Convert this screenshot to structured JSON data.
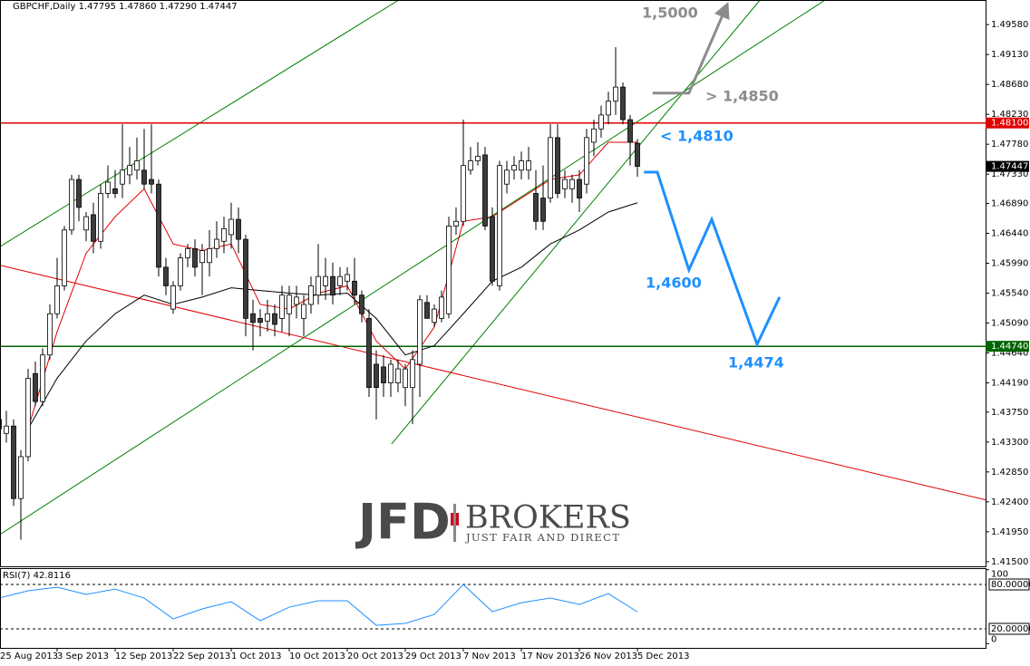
{
  "chart_data": {
    "type": "candlestick",
    "symbol": "GBPCHF,Daily",
    "last_labels": [
      "1.47795",
      "1.47860",
      "1.47290",
      "1.47447"
    ],
    "categories": [
      "25 Aug 2013",
      null,
      null,
      null,
      null,
      null,
      null,
      null,
      "3 Sep 2013",
      null,
      null,
      null,
      null,
      null,
      null,
      null,
      "12 Sep 2013",
      null,
      null,
      null,
      null,
      null,
      null,
      null,
      "22 Sep 2013",
      null,
      null,
      null,
      null,
      null,
      null,
      null,
      "1 Oct 2013",
      null,
      null,
      null,
      null,
      null,
      null,
      null,
      "10 Oct 2013",
      null,
      null,
      null,
      null,
      null,
      null,
      null,
      "20 Oct 2013",
      null,
      null,
      null,
      null,
      null,
      null,
      null,
      "29 Oct 2013",
      null,
      null,
      null,
      null,
      null,
      null,
      null,
      "7 Nov 2013",
      null,
      null,
      null,
      null,
      null,
      null,
      null,
      "17 Nov 2013",
      null,
      null,
      null,
      null,
      null,
      null,
      null,
      "26 Nov 2013",
      null,
      null,
      null,
      null,
      null,
      null,
      null,
      "5 Dec 2013"
    ],
    "open": [
      1.4364,
      1.4343,
      1.4354,
      1.4245,
      1.4308,
      1.4433,
      1.4391,
      1.4461,
      1.4523,
      1.4565,
      1.4649,
      1.4725,
      1.4649,
      1.4672,
      1.4632,
      1.4704,
      1.4711,
      1.4718,
      1.4732,
      1.4739,
      1.4739,
      1.4725,
      1.4718,
      1.4593,
      1.453,
      1.4565,
      1.4607,
      1.4621,
      1.46,
      1.46,
      1.4621,
      1.4632,
      1.4642,
      1.4665,
      1.4635,
      1.4523,
      1.4516,
      1.4512,
      1.4523,
      1.4516,
      1.4523,
      1.4537,
      1.4516,
      1.4537,
      1.4551,
      1.4565,
      1.4579,
      1.4565,
      1.4572,
      1.4572,
      1.4551,
      1.4516,
      1.4447,
      1.4443,
      1.4419,
      1.4419,
      1.4412,
      1.4412,
      1.4447,
      1.454,
      1.451,
      1.4516,
      1.4523,
      1.4655,
      1.4662,
      1.4739,
      1.4753,
      1.4762,
      1.4669,
      1.4565,
      1.4718,
      1.4739,
      1.4739,
      1.4739,
      1.4704,
      1.4697,
      1.4697,
      1.4788,
      1.4711,
      1.4711,
      1.4725,
      1.4718,
      1.4781,
      1.4801,
      1.4822,
      1.4843,
      1.4864,
      1.4815,
      1.47795
    ],
    "high": [
      1.4384,
      1.4377,
      1.4364,
      1.4318,
      1.444,
      1.4451,
      1.4471,
      1.4537,
      1.4607,
      1.4655,
      1.4732,
      1.4732,
      1.4676,
      1.469,
      1.4718,
      1.4746,
      1.4739,
      1.4808,
      1.4774,
      1.4788,
      1.4801,
      1.4808,
      1.4725,
      1.4607,
      1.4572,
      1.4614,
      1.4628,
      1.4635,
      1.4628,
      1.4649,
      1.4662,
      1.4669,
      1.469,
      1.4683,
      1.4642,
      1.4544,
      1.453,
      1.4544,
      1.4537,
      1.4565,
      1.4565,
      1.4565,
      1.4551,
      1.4579,
      1.4628,
      1.4607,
      1.46,
      1.4593,
      1.4593,
      1.4607,
      1.4558,
      1.453,
      1.4468,
      1.4461,
      1.4454,
      1.4454,
      1.4447,
      1.4468,
      1.4551,
      1.4551,
      1.4537,
      1.4558,
      1.4669,
      1.4683,
      1.4815,
      1.4774,
      1.4781,
      1.4774,
      1.4683,
      1.4753,
      1.4753,
      1.476,
      1.4767,
      1.4774,
      1.4739,
      1.4746,
      1.4808,
      1.4808,
      1.4739,
      1.4732,
      1.4739,
      1.4801,
      1.4815,
      1.4836,
      1.4857,
      1.4924,
      1.4871,
      1.4822,
      1.4786
    ],
    "low": [
      1.4336,
      1.4329,
      1.4234,
      1.4183,
      1.4301,
      1.4384,
      1.4384,
      1.4454,
      1.4516,
      1.4558,
      1.4642,
      1.4662,
      1.4632,
      1.4614,
      1.4621,
      1.4697,
      1.4697,
      1.4697,
      1.4718,
      1.4725,
      1.4711,
      1.4704,
      1.4579,
      1.4551,
      1.4523,
      1.4558,
      1.4593,
      1.4579,
      1.4551,
      1.4579,
      1.4607,
      1.4614,
      1.4621,
      1.4614,
      1.4489,
      1.4468,
      1.4489,
      1.4496,
      1.4489,
      1.4496,
      1.4489,
      1.4516,
      1.4489,
      1.4523,
      1.4537,
      1.4544,
      1.4537,
      1.4551,
      1.4558,
      1.4537,
      1.451,
      1.4398,
      1.4364,
      1.4398,
      1.4398,
      1.4405,
      1.4384,
      1.4357,
      1.4398,
      1.4516,
      1.4503,
      1.451,
      1.4516,
      1.4642,
      1.4655,
      1.4732,
      1.4746,
      1.4649,
      1.4565,
      1.4558,
      1.4704,
      1.4725,
      1.4725,
      1.4725,
      1.4649,
      1.4649,
      1.469,
      1.4697,
      1.4697,
      1.469,
      1.4676,
      1.4704,
      1.476,
      1.4788,
      1.4808,
      1.4822,
      1.4808,
      1.4746,
      1.4729
    ],
    "close": [
      1.435,
      1.4354,
      1.4245,
      1.4308,
      1.4426,
      1.4391,
      1.4461,
      1.4523,
      1.4565,
      1.4649,
      1.4725,
      1.4683,
      1.4669,
      1.4632,
      1.4704,
      1.4721,
      1.4704,
      1.4739,
      1.4746,
      1.4753,
      1.4718,
      1.4718,
      1.4593,
      1.4565,
      1.4565,
      1.4607,
      1.4621,
      1.4593,
      1.4618,
      1.4621,
      1.4635,
      1.4651,
      1.4665,
      1.4635,
      1.4516,
      1.451,
      1.451,
      1.4523,
      1.4507,
      1.4551,
      1.4551,
      1.4548,
      1.4537,
      1.4565,
      1.4579,
      1.4579,
      1.4551,
      1.4579,
      1.4582,
      1.4551,
      1.4523,
      1.4412,
      1.4412,
      1.4419,
      1.4447,
      1.444,
      1.444,
      1.4454,
      1.4544,
      1.4516,
      1.453,
      1.4548,
      1.4655,
      1.4662,
      1.4746,
      1.4753,
      1.476,
      1.4655,
      1.4572,
      1.4746,
      1.4739,
      1.4746,
      1.4753,
      1.4753,
      1.4662,
      1.4662,
      1.4788,
      1.4704,
      1.4725,
      1.4725,
      1.4697,
      1.4788,
      1.4801,
      1.4822,
      1.4843,
      1.4864,
      1.4815,
      1.4781,
      1.47447
    ],
    "up_color": "#ffffff",
    "down_color": "#3c3c3c",
    "ylim": [
      1.4143,
      1.4995
    ],
    "yticks": [
      {
        "value": 1.4958,
        "label": "1.49580"
      },
      {
        "value": 1.4913,
        "label": "1.49130"
      },
      {
        "value": 1.4868,
        "label": "1.48680"
      },
      {
        "value": 1.4823,
        "label": "1.48230"
      },
      {
        "value": 1.4778,
        "label": "1.47780"
      },
      {
        "value": 1.4733,
        "label": "1.47330"
      },
      {
        "value": 1.4689,
        "label": "1.46890"
      },
      {
        "value": 1.4644,
        "label": "1.46440"
      },
      {
        "value": 1.4599,
        "label": "1.45990"
      },
      {
        "value": 1.4554,
        "label": "1.45540"
      },
      {
        "value": 1.4509,
        "label": "1.45090"
      },
      {
        "value": 1.4464,
        "label": "1.44640"
      },
      {
        "value": 1.4419,
        "label": "1.44190"
      },
      {
        "value": 1.4375,
        "label": "1.43750"
      },
      {
        "value": 1.433,
        "label": "1.43300"
      },
      {
        "value": 1.4285,
        "label": "1.42850"
      },
      {
        "value": 1.424,
        "label": "1.42400"
      },
      {
        "value": 1.4195,
        "label": "1.41950"
      },
      {
        "value": 1.415,
        "label": "1.41500"
      }
    ],
    "levels": [
      {
        "value": 1.481,
        "label": "1.48100",
        "color": "#e00000"
      },
      {
        "value": 1.4474,
        "label": "1.44740",
        "color": "#006400"
      }
    ],
    "moving_averages": [
      {
        "color": "#e00000",
        "x": [
          4,
          8,
          12,
          16,
          20,
          24,
          28,
          32,
          36,
          40,
          44,
          48,
          52,
          56,
          60,
          64,
          68,
          72,
          76,
          80,
          84,
          88
        ],
        "values": [
          1.435,
          1.4496,
          1.4614,
          1.4669,
          1.4711,
          1.4628,
          1.4618,
          1.4628,
          1.4537,
          1.453,
          1.4554,
          1.4565,
          1.4482,
          1.444,
          1.4503,
          1.4662,
          1.4669,
          1.4697,
          1.4725,
          1.4732,
          1.4781,
          1.4781
        ]
      },
      {
        "color": "#000000",
        "x": [
          4,
          8,
          12,
          16,
          20,
          24,
          28,
          32,
          36,
          40,
          44,
          48,
          52,
          56,
          60,
          64,
          68,
          72,
          76,
          80,
          84,
          88
        ],
        "values": [
          1.435,
          1.4426,
          1.4482,
          1.4523,
          1.4551,
          1.4537,
          1.4548,
          1.4562,
          1.4558,
          1.4554,
          1.4551,
          1.4554,
          1.4516,
          1.4461,
          1.4475,
          1.4523,
          1.4572,
          1.4593,
          1.4628,
          1.4649,
          1.4676,
          1.469
        ]
      }
    ],
    "trendlines": [
      {
        "color": "#008000",
        "x": [
          0.125,
          55.1
        ],
        "values": [
          1.4624,
          1.4995
        ]
      },
      {
        "color": "#008000",
        "x": [
          0.125,
          113.9
        ],
        "values": [
          1.4191,
          1.4995
        ]
      },
      {
        "color": "#008000",
        "x": [
          54.1,
          104.9
        ],
        "values": [
          1.4327,
          1.4995
        ]
      },
      {
        "color": "#e00000",
        "x": [
          0.125,
          136
        ],
        "values": [
          1.4596,
          1.4243
        ]
      }
    ],
    "projections": [
      {
        "color": "#1e90ff",
        "arrow": false,
        "x": [
          88.9,
          90.75,
          95.1,
          98.25,
          104.5,
          107.6
        ],
        "values": [
          1.4736,
          1.4736,
          1.4589,
          1.4665,
          1.4477,
          1.4548
        ]
      },
      {
        "color": "#8c8c8c",
        "arrow": true,
        "x": [
          90.1,
          95.1,
          100.1
        ],
        "values": [
          1.4855,
          1.4855,
          1.4981
        ]
      }
    ],
    "annotations": [
      "1,5000",
      "> 1,4850",
      "< 1,4810",
      "1,4600",
      "1,4474"
    ],
    "rsi": {
      "name": "RSI(7)",
      "color": "#1e90ff",
      "ylim": [
        0,
        100
      ],
      "yticks": [
        100,
        {
          "value": 80,
          "label": "80.00000"
        },
        {
          "value": 20,
          "label": "20.00000"
        },
        0
      ],
      "x": [
        0,
        4,
        8,
        12,
        16,
        20,
        24,
        28,
        32,
        36,
        40,
        44,
        48,
        52,
        56,
        60,
        64,
        68,
        72,
        76,
        80,
        84,
        88
      ],
      "values": [
        61.6,
        71.4,
        76.3,
        66.5,
        73.8,
        61.6,
        33.4,
        46.9,
        56.7,
        31,
        49.3,
        57.9,
        57.9,
        24.8,
        27.3,
        39.5,
        79.9,
        43.2,
        55.4,
        61.6,
        53,
        67.7,
        42.8116
      ]
    }
  },
  "logo": {
    "name": "JFD",
    "brand": "BROKERS",
    "tagline": "JUST FAIR AND DIRECT"
  }
}
